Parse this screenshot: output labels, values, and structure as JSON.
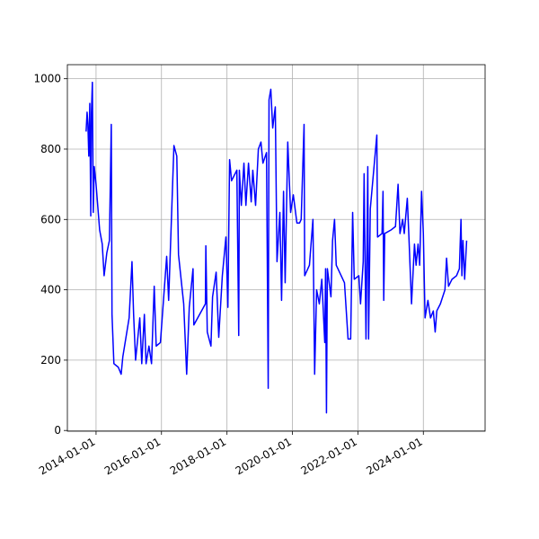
{
  "chart_data": {
    "type": "line",
    "color": "#0000ff",
    "grid": true,
    "xlim": [
      "2013-02-15",
      "2025-11-20"
    ],
    "xticks": [
      "2014-01-01",
      "2016-01-01",
      "2018-01-01",
      "2020-01-01",
      "2022-01-01",
      "2024-01-01"
    ],
    "ylim": [
      -2,
      1040
    ],
    "yticks": [
      0,
      200,
      400,
      600,
      800,
      1000
    ],
    "x": [
      "2013-09-12",
      "2013-09-23",
      "2013-10-02",
      "2013-10-12",
      "2013-10-23",
      "2013-11-03",
      "2013-11-10",
      "2013-11-21",
      "2013-12-01",
      "2013-12-12",
      "2014-01-01",
      "2014-02-10",
      "2014-03-11",
      "2014-04-01",
      "2014-05-01",
      "2014-05-30",
      "2014-06-20",
      "2014-06-28",
      "2014-07-19",
      "2014-09-06",
      "2014-10-08",
      "2014-10-27",
      "2015-01-05",
      "2015-02-06",
      "2015-02-24",
      "2015-03-18",
      "2015-05-04",
      "2015-05-26",
      "2015-06-24",
      "2015-07-13",
      "2015-08-14",
      "2015-09-12",
      "2015-10-12",
      "2015-11-03",
      "2015-12-20",
      "2016-02-28",
      "2016-03-21",
      "2016-05-19",
      "2016-06-20",
      "2016-07-09",
      "2016-09-05",
      "2016-10-08",
      "2016-11-06",
      "2016-12-18",
      "2016-12-27",
      "2017-05-05",
      "2017-05-10",
      "2017-05-26",
      "2017-07-06",
      "2017-07-24",
      "2017-09-02",
      "2017-10-01",
      "2017-11-10",
      "2017-12-20",
      "2018-01-11",
      "2018-01-30",
      "2018-02-21",
      "2018-04-21",
      "2018-05-12",
      "2018-05-19",
      "2018-06-10",
      "2018-07-09",
      "2018-07-31",
      "2018-08-29",
      "2018-09-28",
      "2018-10-16",
      "2018-11-16",
      "2018-12-17",
      "2019-01-15",
      "2019-02-06",
      "2019-03-18",
      "2019-04-06",
      "2019-04-15",
      "2019-05-05",
      "2019-05-26",
      "2019-06-24",
      "2019-07-13",
      "2019-08-14",
      "2019-09-02",
      "2019-09-24",
      "2019-10-12",
      "2019-11-10",
      "2019-12-12",
      "2020-01-11",
      "2020-02-20",
      "2020-03-21",
      "2020-04-08",
      "2020-05-10",
      "2020-05-17",
      "2020-07-09",
      "2020-08-17",
      "2020-09-05",
      "2020-09-27",
      "2020-10-27",
      "2020-11-24",
      "2020-12-27",
      "2021-01-05",
      "2021-01-15",
      "2021-01-25",
      "2021-03-06",
      "2021-03-24",
      "2021-04-15",
      "2021-05-04",
      "2021-08-04",
      "2021-09-13",
      "2021-10-12",
      "2021-11-03",
      "2021-11-21",
      "2022-01-11",
      "2022-01-30",
      "2022-03-01",
      "2022-03-11",
      "2022-04-01",
      "2022-04-21",
      "2022-04-30",
      "2022-05-19",
      "2022-07-31",
      "2022-08-08",
      "2022-09-27",
      "2022-10-08",
      "2022-10-16",
      "2022-10-27",
      "2023-01-05",
      "2023-02-24",
      "2023-03-25",
      "2023-04-15",
      "2023-05-15",
      "2023-06-02",
      "2023-07-06",
      "2023-07-24",
      "2023-08-22",
      "2023-09-24",
      "2023-10-12",
      "2023-11-03",
      "2023-11-21",
      "2023-12-12",
      "2024-01-01",
      "2024-01-20",
      "2024-02-21",
      "2024-03-21",
      "2024-04-21",
      "2024-05-12",
      "2024-05-30",
      "2024-07-09",
      "2024-08-29",
      "2024-09-16",
      "2024-10-08",
      "2024-11-16",
      "2025-01-05",
      "2025-02-06",
      "2025-02-24",
      "2025-03-06",
      "2025-03-18",
      "2025-04-06",
      "2025-04-28"
    ],
    "values": [
      850,
      905,
      870,
      780,
      930,
      610,
      900,
      990,
      620,
      750,
      700,
      570,
      530,
      440,
      505,
      540,
      870,
      330,
      190,
      180,
      160,
      210,
      320,
      480,
      330,
      200,
      320,
      190,
      330,
      190,
      240,
      190,
      410,
      240,
      250,
      495,
      370,
      810,
      780,
      500,
      360,
      160,
      350,
      460,
      300,
      360,
      525,
      280,
      240,
      380,
      450,
      265,
      440,
      550,
      350,
      770,
      710,
      740,
      270,
      740,
      640,
      760,
      640,
      760,
      650,
      740,
      640,
      800,
      820,
      760,
      790,
      120,
      940,
      970,
      860,
      920,
      480,
      620,
      370,
      680,
      420,
      820,
      620,
      670,
      590,
      590,
      600,
      870,
      440,
      470,
      600,
      160,
      400,
      360,
      430,
      250,
      460,
      50,
      460,
      380,
      540,
      600,
      470,
      420,
      260,
      260,
      620,
      430,
      440,
      360,
      480,
      730,
      260,
      750,
      260,
      630,
      840,
      550,
      560,
      680,
      370,
      560,
      570,
      580,
      700,
      560,
      600,
      560,
      660,
      550,
      360,
      530,
      470,
      530,
      470,
      680,
      560,
      320,
      370,
      320,
      340,
      280,
      340,
      360,
      400,
      490,
      410,
      430,
      440,
      460,
      600,
      440,
      540,
      430,
      540
    ]
  }
}
